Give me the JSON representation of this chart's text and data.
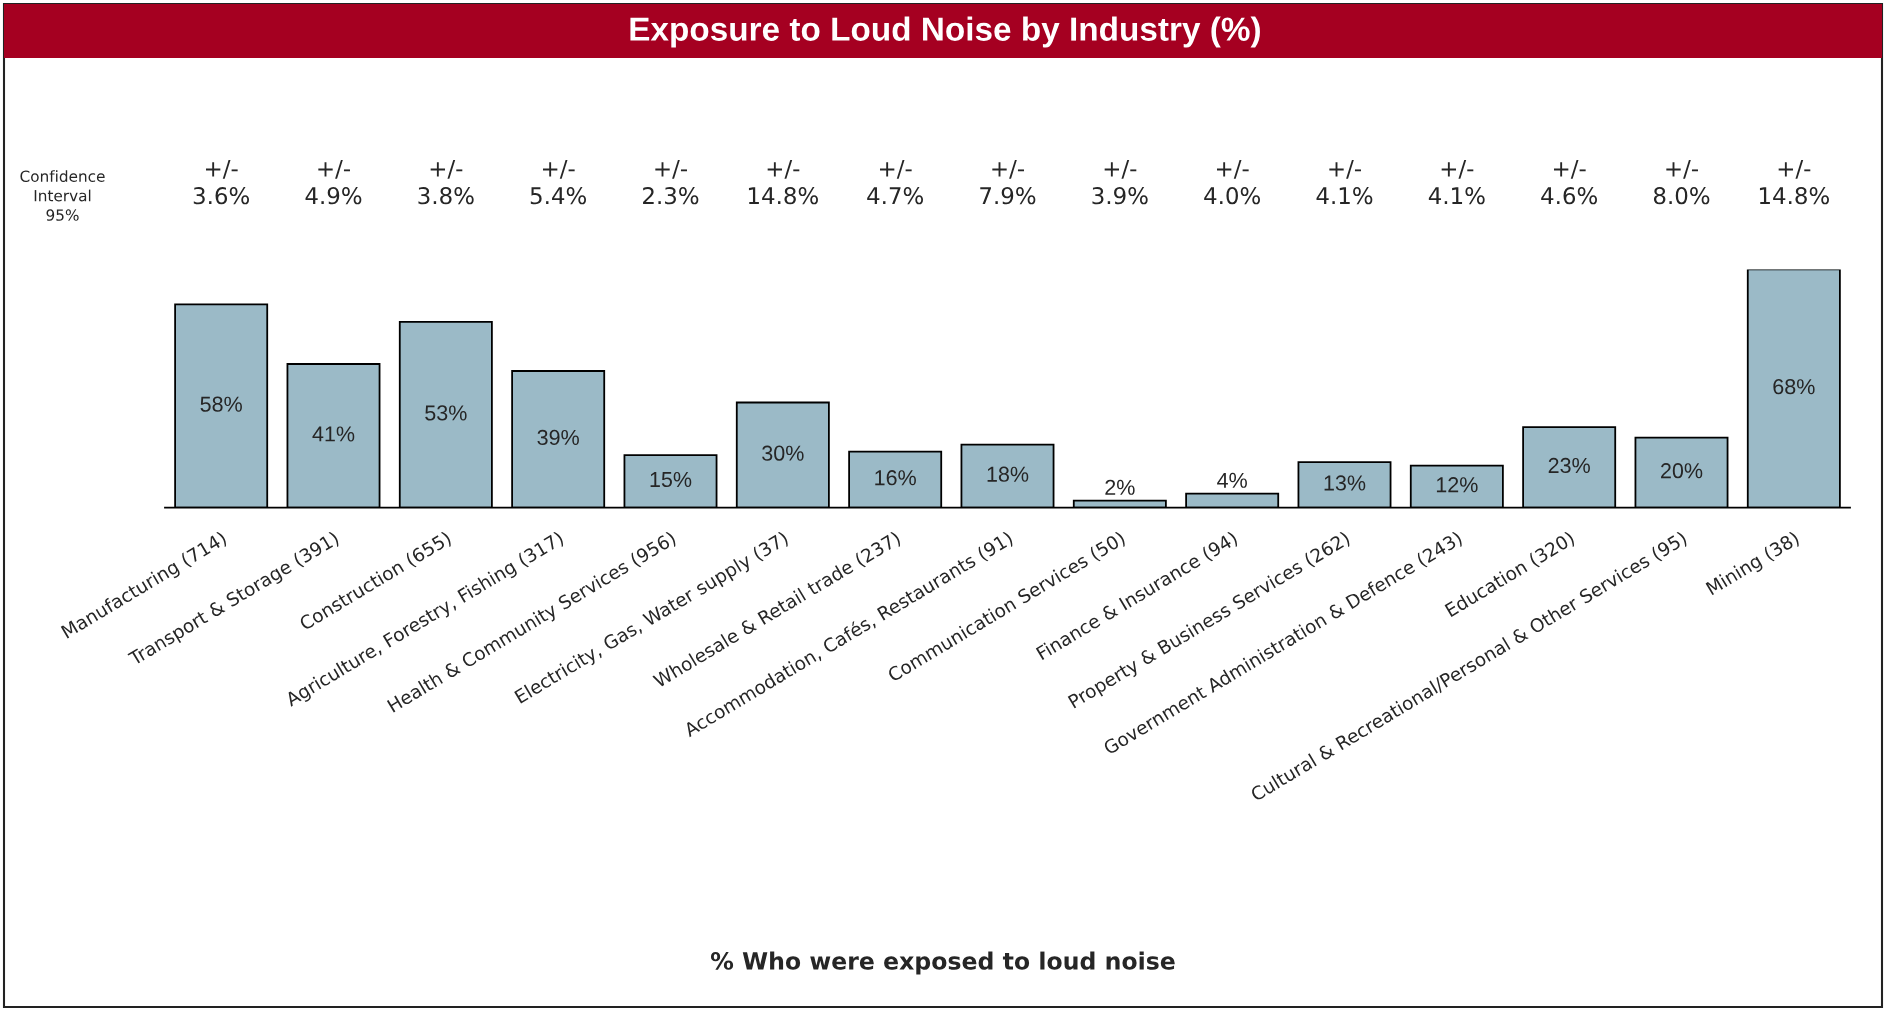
{
  "chart_data": {
    "type": "bar",
    "title": "Exposure to Loud Noise by Industry (%)",
    "categories": [
      "Manufacturing (714)",
      "Transport & Storage (391)",
      "Construction (655)",
      "Agriculture, Forestry, Fishing (317)",
      "Health & Community Services (956)",
      "Electricity, Gas, Water supply (37)",
      "Wholesale & Retail trade (237)",
      "Accommodation, Cafés, Restaurants (91)",
      "Communication Services (50)",
      "Finance & Insurance (94)",
      "Property & Business Services (262)",
      "Government Administration & Defence (243)",
      "Education (320)",
      "Cultural & Recreational/Personal & Other Services (95)",
      "Mining (38)"
    ],
    "values": [
      58,
      41,
      53,
      39,
      15,
      30,
      16,
      18,
      2,
      4,
      13,
      12,
      23,
      20,
      68
    ],
    "value_labels": [
      "58%",
      "41%",
      "53%",
      "39%",
      "15%",
      "30%",
      "16%",
      "18%",
      "2%",
      "4%",
      "13%",
      "12%",
      "23%",
      "20%",
      "68%"
    ],
    "color": "#9bbac7",
    "annotations": [
      "Confidence\nInterval\n95%",
      "+/-\n3.6%",
      "+/-\n4.9%",
      "+/-\n3.8%",
      "+/-\n5.4%",
      "+/-\n2.3%",
      "+/-\n14.8%",
      "+/-\n4.7%",
      "+/-\n7.9%",
      "+/-\n3.9%",
      "+/-\n4.0%",
      "+/-\n4.1%",
      "+/-\n4.1%",
      "+/-\n4.6%",
      "+/-\n8.0%",
      "+/-\n14.8%",
      "% Who were exposed to loud noise"
    ],
    "grid": false,
    "legend": false
  }
}
